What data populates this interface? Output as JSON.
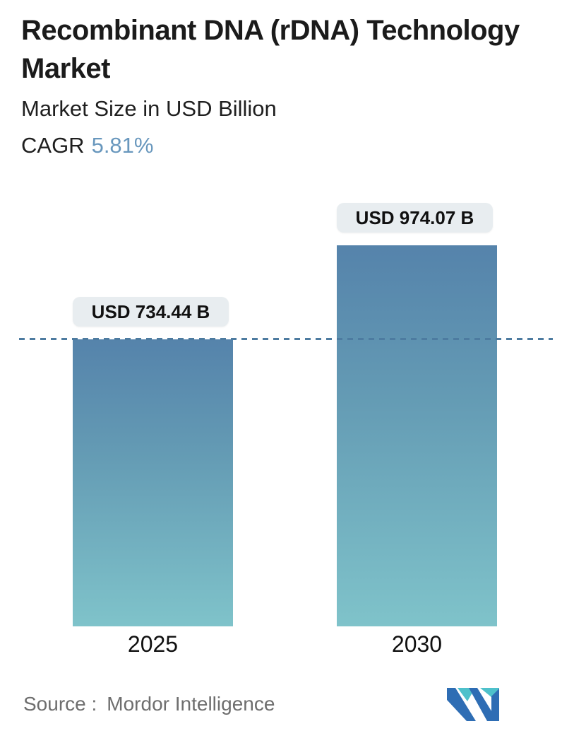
{
  "header": {
    "title": "Recombinant DNA (rDNA) Technology Market",
    "subtitle": "Market Size in USD Billion",
    "cagr_label": "CAGR",
    "cagr_value": "5.81%"
  },
  "chart_data": {
    "type": "bar",
    "title": "Recombinant DNA (rDNA) Technology Market",
    "ylabel": "Market Size in USD Billion",
    "unit": "USD Billion",
    "categories": [
      "2025",
      "2030"
    ],
    "values": [
      734.44,
      974.07
    ],
    "value_labels": [
      "USD 734.44 B",
      "USD 974.07 B"
    ],
    "cagr_percent": 5.81,
    "ylim": [
      0,
      974.07
    ],
    "grid": false,
    "legend": "none",
    "reference_line": {
      "at_value": 734.44,
      "style": "dashed"
    }
  },
  "footer": {
    "source_label": "Source :",
    "source_value": "Mordor Intelligence",
    "logo": "mordor-intelligence-logo"
  },
  "colors": {
    "title_text": "#1b1b1b",
    "cagr_value": "#6897bd",
    "bar_gradient_top": "#5583ab",
    "bar_gradient_bottom": "#7fc3ca",
    "dashed_line": "#4d7ba0",
    "tooltip_bg": "#e8edf0",
    "source_text": "#6e6e6e",
    "logo_teal": "#4ec1cb",
    "logo_blue": "#2e6db4"
  }
}
